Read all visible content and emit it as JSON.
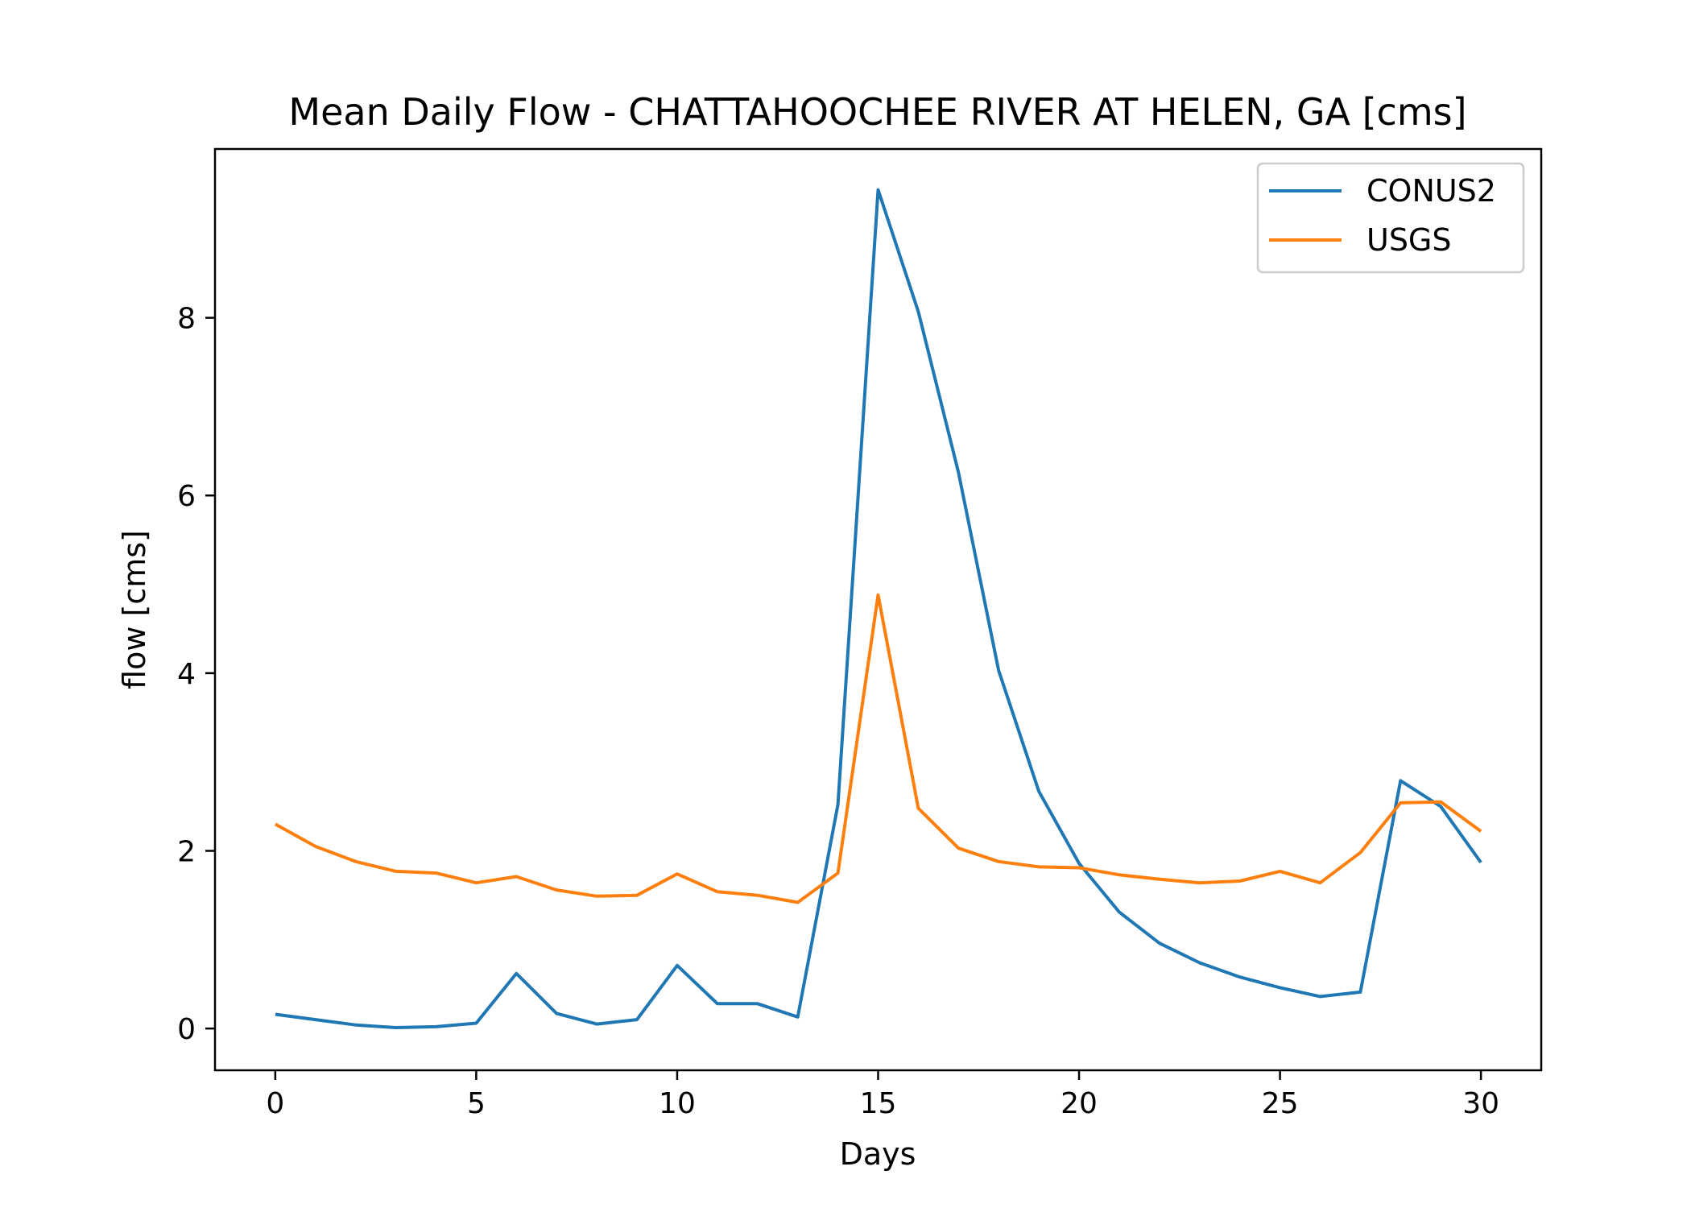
{
  "chart_data": {
    "type": "line",
    "title": "Mean Daily Flow - CHATTAHOOCHEE RIVER AT HELEN, GA [cms]",
    "xlabel": "Days",
    "ylabel": "flow [cms]",
    "xlim": [
      -1.5,
      31.5
    ],
    "ylim": [
      -0.47,
      9.9
    ],
    "xticks": [
      0,
      5,
      10,
      15,
      20,
      25,
      30
    ],
    "yticks": [
      0,
      2,
      4,
      6,
      8
    ],
    "legend": "top-right",
    "grid": false,
    "x": [
      0,
      1,
      2,
      3,
      4,
      5,
      6,
      7,
      8,
      9,
      10,
      11,
      12,
      13,
      14,
      15,
      16,
      17,
      18,
      19,
      20,
      21,
      22,
      23,
      24,
      25,
      26,
      27,
      28,
      29,
      30
    ],
    "series": [
      {
        "name": "CONUS2",
        "color": "#1f77b4",
        "values": [
          0.16,
          0.1,
          0.04,
          0.01,
          0.02,
          0.06,
          0.62,
          0.17,
          0.05,
          0.1,
          0.71,
          0.28,
          0.28,
          0.13,
          2.52,
          9.44,
          8.07,
          6.26,
          4.03,
          2.67,
          1.86,
          1.31,
          0.96,
          0.74,
          0.58,
          0.46,
          0.36,
          0.41,
          2.79,
          2.5,
          1.87
        ]
      },
      {
        "name": "USGS",
        "color": "#ff7f0e",
        "values": [
          2.3,
          2.05,
          1.88,
          1.77,
          1.75,
          1.64,
          1.71,
          1.56,
          1.49,
          1.5,
          1.74,
          1.54,
          1.5,
          1.42,
          1.75,
          4.88,
          2.48,
          2.03,
          1.88,
          1.82,
          1.81,
          1.73,
          1.68,
          1.64,
          1.66,
          1.77,
          1.64,
          1.98,
          2.54,
          2.55,
          2.22
        ]
      }
    ]
  }
}
